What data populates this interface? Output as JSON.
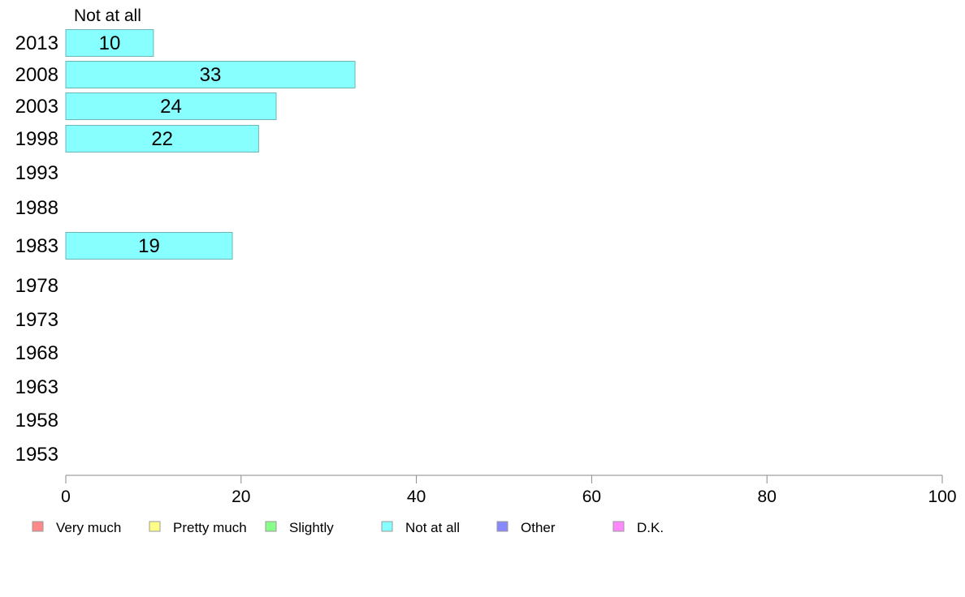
{
  "chart_data": {
    "type": "bar",
    "orientation": "horizontal",
    "series_header": "Not at all",
    "categories": [
      "2013",
      "2008",
      "2003",
      "1998",
      "1993",
      "1988",
      "1983",
      "1978",
      "1973",
      "1968",
      "1963",
      "1958",
      "1953"
    ],
    "series": [
      {
        "name": "Not at all",
        "color": "#88ffff",
        "values": [
          10,
          33,
          24,
          22,
          null,
          null,
          19,
          null,
          null,
          null,
          null,
          null,
          null
        ]
      }
    ],
    "xlim": [
      0,
      100
    ],
    "xticks": [
      0,
      20,
      40,
      60,
      80,
      100
    ],
    "grid": false,
    "legend_position": "bottom",
    "legend": [
      {
        "label": "Very much",
        "color": "#ff8888"
      },
      {
        "label": "Pretty much",
        "color": "#ffff88"
      },
      {
        "label": "Slightly",
        "color": "#88ff88"
      },
      {
        "label": "Not at all",
        "color": "#88ffff"
      },
      {
        "label": "Other",
        "color": "#8888ff"
      },
      {
        "label": "D.K.",
        "color": "#ff88ff"
      }
    ]
  }
}
